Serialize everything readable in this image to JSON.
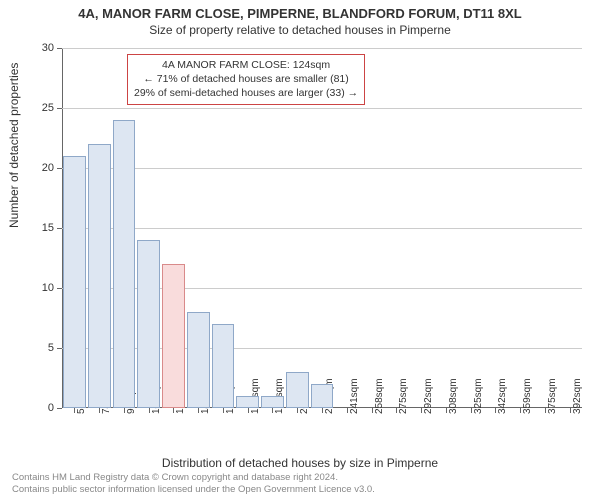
{
  "title_main": "4A, MANOR FARM CLOSE, PIMPERNE, BLANDFORD FORUM, DT11 8XL",
  "title_sub": "Size of property relative to detached houses in Pimperne",
  "ylabel": "Number of detached properties",
  "xlabel": "Distribution of detached houses by size in Pimperne",
  "chart": {
    "type": "bar",
    "background_color": "#ffffff",
    "grid_color": "#cccccc",
    "axis_color": "#666666",
    "bar_fill": "#dde6f2",
    "bar_border": "#8fa8c8",
    "highlight_fill": "#f9dcdc",
    "highlight_border": "#d98a8a",
    "ylim": [
      0,
      30
    ],
    "ytick_step": 5,
    "categories": [
      "57sqm",
      "74sqm",
      "91sqm",
      "107sqm",
      "124sqm",
      "141sqm",
      "158sqm",
      "174sqm",
      "191sqm",
      "208sqm",
      "225sqm",
      "241sqm",
      "258sqm",
      "275sqm",
      "292sqm",
      "308sqm",
      "325sqm",
      "342sqm",
      "359sqm",
      "375sqm",
      "392sqm"
    ],
    "values": [
      21,
      22,
      24,
      14,
      12,
      8,
      7,
      1,
      1,
      3,
      2,
      0,
      0,
      0,
      0,
      0,
      0,
      0,
      0,
      0,
      0
    ],
    "highlight_index": 4,
    "bar_width_ratio": 0.92,
    "label_fontsize": 11,
    "tick_fontsize": 10
  },
  "callout": {
    "border_color": "#cc4444",
    "line1": "4A MANOR FARM CLOSE: 124sqm",
    "line2": "← 71% of detached houses are smaller (81)",
    "line3": "29% of semi-detached houses are larger (33) →"
  },
  "footer": {
    "line1": "Contains HM Land Registry data © Crown copyright and database right 2024.",
    "line2": "Contains public sector information licensed under the Open Government Licence v3.0."
  }
}
